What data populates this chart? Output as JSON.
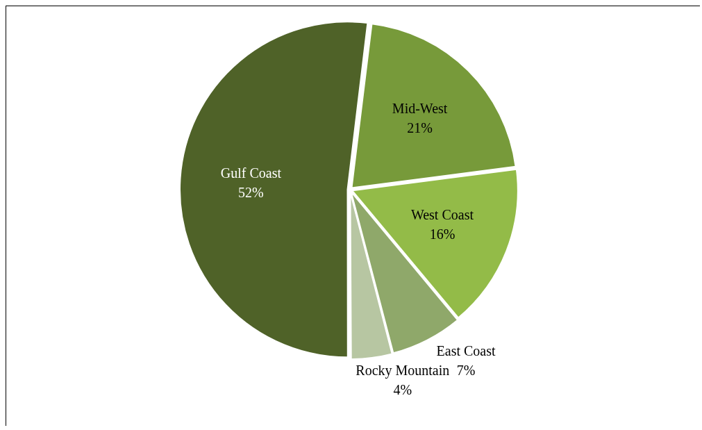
{
  "chart_data": {
    "type": "pie",
    "categories": [
      "Mid-West",
      "West Coast",
      "East Coast",
      "Rocky Mountain",
      "Gulf Coast"
    ],
    "values": [
      21,
      16,
      7,
      4,
      52
    ],
    "value_labels": [
      "21%",
      "16%",
      "7%",
      "4%",
      "52%"
    ],
    "colors": [
      "#779a3a",
      "#93bb48",
      "#8fa86a",
      "#b7c6a2",
      "#4f6228"
    ],
    "legend": false
  }
}
